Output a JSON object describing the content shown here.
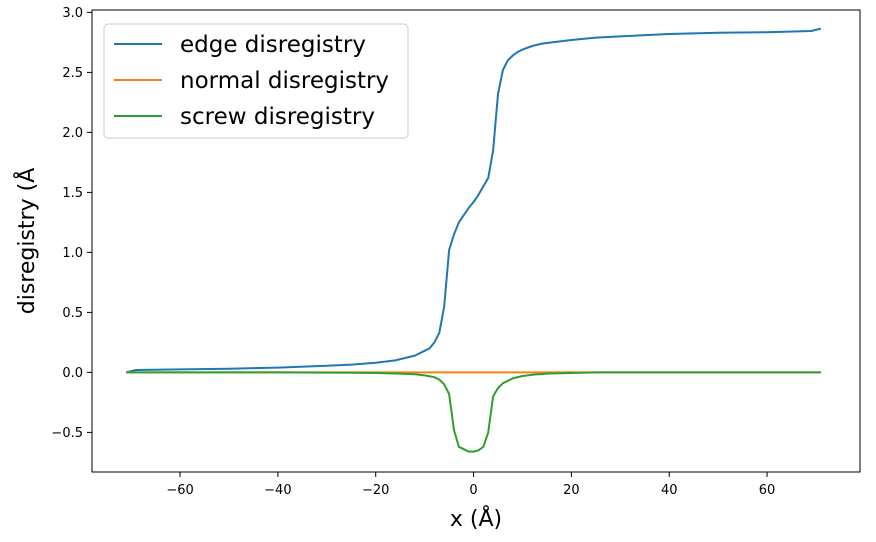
{
  "chart_data": {
    "type": "line",
    "title": "",
    "xlabel": "x (Å)",
    "ylabel": "disregistry (Å",
    "xlim": [
      -78,
      79
    ],
    "ylim": [
      -0.83,
      3.02
    ],
    "xticks": [
      -60,
      -40,
      -20,
      0,
      20,
      40,
      60
    ],
    "xtick_labels": [
      "−60",
      "−40",
      "−20",
      "0",
      "20",
      "40",
      "60"
    ],
    "yticks": [
      -0.5,
      0.0,
      0.5,
      1.0,
      1.5,
      2.0,
      2.5,
      3.0
    ],
    "ytick_labels": [
      "−0.5",
      "0.0",
      "0.5",
      "1.0",
      "1.5",
      "2.0",
      "2.5",
      "3.0"
    ],
    "grid": false,
    "legend_position": "top-left",
    "series": [
      {
        "name": "edge disregistry",
        "color": "#1f77b4",
        "x": [
          -71,
          -69,
          -60,
          -50,
          -40,
          -30,
          -25,
          -20,
          -16,
          -14,
          -12,
          -10,
          -9,
          -8,
          -7,
          -6,
          -5,
          -4,
          -3,
          -2,
          -1,
          0,
          1,
          2,
          3,
          4,
          5,
          6,
          7,
          8,
          9,
          10,
          12,
          14,
          16,
          20,
          25,
          30,
          40,
          50,
          60,
          69,
          71
        ],
        "y": [
          0.0,
          0.02,
          0.025,
          0.03,
          0.04,
          0.055,
          0.065,
          0.08,
          0.1,
          0.12,
          0.14,
          0.18,
          0.2,
          0.25,
          0.33,
          0.55,
          1.02,
          1.15,
          1.25,
          1.31,
          1.37,
          1.42,
          1.48,
          1.55,
          1.62,
          1.85,
          2.32,
          2.52,
          2.6,
          2.64,
          2.67,
          2.69,
          2.72,
          2.74,
          2.75,
          2.77,
          2.79,
          2.8,
          2.82,
          2.83,
          2.835,
          2.845,
          2.865
        ]
      },
      {
        "name": "normal disregistry",
        "color": "#ff7f0e",
        "x": [
          -71,
          71
        ],
        "y": [
          0.0,
          0.0
        ]
      },
      {
        "name": "screw disregistry",
        "color": "#2ca02c",
        "x": [
          -71,
          -60,
          -40,
          -30,
          -25,
          -20,
          -15,
          -12,
          -10,
          -8,
          -7,
          -6,
          -5,
          -4,
          -3,
          -2,
          -1,
          0,
          1,
          2,
          3,
          4,
          5,
          6,
          7,
          8,
          10,
          12,
          15,
          20,
          25,
          30,
          40,
          50,
          60,
          71
        ],
        "y": [
          0.0,
          0.0,
          0.0,
          -0.002,
          -0.003,
          -0.005,
          -0.01,
          -0.015,
          -0.025,
          -0.04,
          -0.06,
          -0.1,
          -0.18,
          -0.48,
          -0.62,
          -0.64,
          -0.66,
          -0.66,
          -0.65,
          -0.62,
          -0.5,
          -0.2,
          -0.13,
          -0.09,
          -0.07,
          -0.05,
          -0.03,
          -0.02,
          -0.01,
          -0.005,
          0.0,
          0.0,
          0.0,
          0.0,
          0.0,
          0.0
        ]
      }
    ]
  }
}
